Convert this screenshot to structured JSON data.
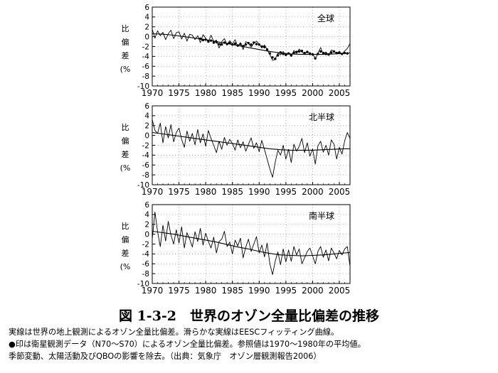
{
  "figure": {
    "title": "図 1-3-2　世界のオゾン全量比偏差の推移",
    "caption_lines": [
      "実線は世界の地上観測によるオゾン全量比偏差。滑らかな実線はEESCフィッティング曲線。",
      "●印は衛星観測データ（N70～S70）によるオゾン全量比偏差。参照値は1970～1980年の平均値。",
      "季節変動、太陽活動及びQBOの影響を除去。（出典：気象庁　オゾン層観測報告2006）"
    ]
  },
  "chart_data": [
    {
      "type": "line",
      "region_label": "全球",
      "ylabel": [
        "比",
        "偏",
        "差",
        "(%"
      ],
      "xlim": [
        1970,
        2007
      ],
      "ylim": [
        -10,
        6
      ],
      "xticks": [
        "1970",
        "1975",
        "1980",
        "1985",
        "1990",
        "1995",
        "2000",
        "2005"
      ],
      "yticks": [
        "6",
        "4",
        "2",
        "0",
        "-2",
        "-4",
        "-6",
        "-8",
        "-10"
      ],
      "grid": "dotted",
      "series": [
        {
          "name": "",
          "style": "line",
          "x": [
            1970.0,
            1970.5,
            1971.0,
            1971.5,
            1972.0,
            1972.5,
            1973.0,
            1973.5,
            1974.0,
            1974.5,
            1975.0,
            1975.5,
            1976.0,
            1976.5,
            1977.0,
            1977.5,
            1978.0,
            1978.5,
            1979.0,
            1979.5,
            1980.0,
            1980.5,
            1981.0,
            1981.5,
            1982.0,
            1982.5,
            1983.0,
            1983.5,
            1984.0,
            1984.5,
            1985.0,
            1985.5,
            1986.0,
            1986.5,
            1987.0,
            1987.5,
            1988.0,
            1988.5,
            1989.0,
            1989.5,
            1990.0,
            1990.5,
            1991.0,
            1991.5,
            1992.0,
            1992.5,
            1993.0,
            1993.5,
            1994.0,
            1994.5,
            1995.0,
            1995.5,
            1996.0,
            1996.5,
            1997.0,
            1997.5,
            1998.0,
            1998.5,
            1999.0,
            1999.5,
            2000.0,
            2000.5,
            2001.0,
            2001.5,
            2002.0,
            2002.5,
            2003.0,
            2003.5,
            2004.0,
            2004.5,
            2005.0,
            2005.5,
            2006.0,
            2006.5,
            2007.0
          ],
          "y": [
            1.5,
            -0.3,
            1.2,
            0.2,
            0.9,
            -0.6,
            0.6,
            1.3,
            -0.4,
            0.8,
            1.0,
            -0.5,
            0.7,
            -0.9,
            0.5,
            0.3,
            -0.6,
            0.2,
            -1.2,
            0.4,
            -0.3,
            -1.1,
            0.3,
            -1.0,
            -0.7,
            -2.3,
            -1.0,
            -0.4,
            -1.6,
            -0.8,
            -1.5,
            -0.6,
            -2.0,
            -1.2,
            -2.6,
            -1.0,
            -1.3,
            -2.1,
            -1.4,
            -0.9,
            -1.5,
            -2.3,
            -1.7,
            -2.6,
            -3.6,
            -4.8,
            -4.6,
            -3.3,
            -3.7,
            -3.0,
            -3.9,
            -3.3,
            -4.0,
            -2.8,
            -3.4,
            -2.5,
            -3.1,
            -3.6,
            -2.9,
            -3.7,
            -3.4,
            -4.5,
            -3.3,
            -2.2,
            -3.6,
            -3.1,
            -3.8,
            -2.7,
            -2.9,
            -3.5,
            -3.1,
            -3.6,
            -2.9,
            -2.4,
            -1.4
          ]
        },
        {
          "name": "",
          "style": "dots",
          "x": [
            1979.0,
            1979.5,
            1980.0,
            1980.5,
            1981.0,
            1981.5,
            1982.0,
            1982.5,
            1983.0,
            1983.5,
            1984.0,
            1984.5,
            1985.0,
            1985.5,
            1986.0,
            1986.5,
            1987.0,
            1987.5,
            1988.0,
            1988.5,
            1989.0,
            1989.5,
            1990.0,
            1990.5,
            1991.0,
            1991.5,
            1992.0,
            1992.5,
            1993.0,
            1993.5,
            1994.0,
            1994.5,
            1995.0,
            1995.5,
            1996.0,
            1996.5,
            1997.0,
            1997.5,
            1998.0,
            1998.5,
            1999.0,
            1999.5,
            2000.0,
            2000.5,
            2001.0,
            2001.5,
            2002.0,
            2002.5,
            2003.0,
            2003.5,
            2004.0,
            2004.5,
            2005.0,
            2005.5,
            2006.0,
            2006.5
          ],
          "y": [
            -0.4,
            -0.7,
            -0.6,
            -1.0,
            -0.8,
            -1.2,
            -1.1,
            -1.5,
            -1.6,
            -1.2,
            -1.5,
            -1.3,
            -1.6,
            -1.4,
            -1.8,
            -1.5,
            -1.9,
            -1.6,
            -1.3,
            -1.6,
            -1.2,
            -1.5,
            -1.6,
            -2.0,
            -2.1,
            -2.6,
            -3.4,
            -4.2,
            -4.5,
            -3.8,
            -3.2,
            -3.5,
            -3.7,
            -3.4,
            -3.8,
            -3.3,
            -3.1,
            -3.0,
            -2.9,
            -3.3,
            -3.1,
            -3.4,
            -3.6,
            -4.4,
            -3.5,
            -3.0,
            -3.3,
            -3.5,
            -3.6,
            -3.2,
            -3.0,
            -3.3,
            -3.2,
            -3.5,
            -3.3,
            -3.4
          ]
        },
        {
          "name": "",
          "style": "smooth",
          "x": [
            1970,
            1972,
            1974,
            1976,
            1978,
            1980,
            1982,
            1984,
            1986,
            1988,
            1990,
            1992,
            1994,
            1996,
            1998,
            2000,
            2002,
            2004,
            2006,
            2007
          ],
          "y": [
            0.6,
            0.5,
            0.3,
            0.0,
            -0.3,
            -0.6,
            -1.0,
            -1.4,
            -1.8,
            -2.2,
            -2.6,
            -3.0,
            -3.3,
            -3.5,
            -3.6,
            -3.6,
            -3.6,
            -3.5,
            -3.4,
            -3.3
          ]
        }
      ]
    },
    {
      "type": "line",
      "region_label": "北半球",
      "ylabel": [
        "比",
        "偏",
        "差",
        "(%"
      ],
      "xlim": [
        1970,
        2007
      ],
      "ylim": [
        -10,
        6
      ],
      "xticks": [
        "1970",
        "1975",
        "1980",
        "1985",
        "1990",
        "1995",
        "2000",
        "2005"
      ],
      "yticks": [
        "6",
        "4",
        "2",
        "0",
        "-2",
        "-4",
        "-6",
        "-8",
        "-10"
      ],
      "grid": "dotted",
      "series": [
        {
          "name": "",
          "style": "line",
          "x": [
            1970.0,
            1970.5,
            1971.0,
            1971.5,
            1972.0,
            1972.5,
            1973.0,
            1973.5,
            1974.0,
            1974.5,
            1975.0,
            1975.5,
            1976.0,
            1976.5,
            1977.0,
            1977.5,
            1978.0,
            1978.5,
            1979.0,
            1979.5,
            1980.0,
            1980.5,
            1981.0,
            1981.5,
            1982.0,
            1982.5,
            1983.0,
            1983.5,
            1984.0,
            1984.5,
            1985.0,
            1985.5,
            1986.0,
            1986.5,
            1987.0,
            1987.5,
            1988.0,
            1988.5,
            1989.0,
            1989.5,
            1990.0,
            1990.5,
            1991.0,
            1991.5,
            1992.0,
            1992.5,
            1993.0,
            1993.5,
            1994.0,
            1994.5,
            1995.0,
            1995.5,
            1996.0,
            1996.5,
            1997.0,
            1997.5,
            1998.0,
            1998.5,
            1999.0,
            1999.5,
            2000.0,
            2000.5,
            2001.0,
            2001.5,
            2002.0,
            2002.5,
            2003.0,
            2003.5,
            2004.0,
            2004.5,
            2005.0,
            2005.5,
            2006.0,
            2006.5,
            2007.0
          ],
          "y": [
            3.2,
            1.0,
            0.4,
            2.5,
            -1.5,
            1.8,
            -0.5,
            2.2,
            -1.3,
            0.6,
            1.5,
            -0.8,
            -2.4,
            0.9,
            -1.2,
            0.4,
            -1.9,
            1.2,
            -1.5,
            0.3,
            -2.2,
            1.0,
            -0.6,
            -2.0,
            -3.5,
            -1.2,
            -2.8,
            -0.4,
            -2.0,
            -0.8,
            -1.6,
            -3.0,
            -0.9,
            -2.5,
            -1.3,
            -3.2,
            -1.8,
            -0.5,
            -2.6,
            -1.5,
            -3.3,
            -1.0,
            -2.9,
            -4.8,
            -6.8,
            -8.5,
            -5.5,
            -3.0,
            -4.0,
            -2.0,
            -4.8,
            -2.8,
            -5.5,
            -1.8,
            -3.2,
            -2.2,
            -0.6,
            -3.5,
            -1.5,
            -4.2,
            -2.7,
            -5.8,
            -2.1,
            -1.2,
            -3.4,
            -2.0,
            -4.0,
            -0.9,
            -1.8,
            -4.8,
            -2.4,
            -3.8,
            -1.1,
            0.6,
            -0.6
          ]
        },
        {
          "name": "",
          "style": "smooth",
          "x": [
            1970,
            1972,
            1974,
            1976,
            1978,
            1980,
            1982,
            1984,
            1986,
            1988,
            1990,
            1992,
            1994,
            1996,
            1998,
            2000,
            2002,
            2004,
            2006,
            2007
          ],
          "y": [
            0.6,
            0.3,
            0.0,
            -0.3,
            -0.6,
            -0.9,
            -1.2,
            -1.5,
            -1.8,
            -2.1,
            -2.4,
            -2.7,
            -2.9,
            -3.0,
            -3.0,
            -3.0,
            -2.9,
            -2.8,
            -2.7,
            -2.7
          ]
        }
      ]
    },
    {
      "type": "line",
      "region_label": "南半球",
      "ylabel": [
        "比",
        "偏",
        "差",
        "(%"
      ],
      "xlim": [
        1970,
        2007
      ],
      "ylim": [
        -10,
        6
      ],
      "xticks": [
        "1970",
        "1975",
        "1980",
        "1985",
        "1990",
        "1995",
        "2000",
        "2005"
      ],
      "yticks": [
        "6",
        "4",
        "2",
        "0",
        "-2",
        "-4",
        "-6",
        "-8",
        "-10"
      ],
      "grid": "dotted",
      "series": [
        {
          "name": "",
          "style": "line",
          "x": [
            1970.0,
            1970.5,
            1971.0,
            1971.5,
            1972.0,
            1972.5,
            1973.0,
            1973.5,
            1974.0,
            1974.5,
            1975.0,
            1975.5,
            1976.0,
            1976.5,
            1977.0,
            1977.5,
            1978.0,
            1978.5,
            1979.0,
            1979.5,
            1980.0,
            1980.5,
            1981.0,
            1981.5,
            1982.0,
            1982.5,
            1983.0,
            1983.5,
            1984.0,
            1984.5,
            1985.0,
            1985.5,
            1986.0,
            1986.5,
            1987.0,
            1987.5,
            1988.0,
            1988.5,
            1989.0,
            1989.5,
            1990.0,
            1990.5,
            1991.0,
            1991.5,
            1992.0,
            1992.5,
            1993.0,
            1993.5,
            1994.0,
            1994.5,
            1995.0,
            1995.5,
            1996.0,
            1996.5,
            1997.0,
            1997.5,
            1998.0,
            1998.5,
            1999.0,
            1999.5,
            2000.0,
            2000.5,
            2001.0,
            2001.5,
            2002.0,
            2002.5,
            2003.0,
            2003.5,
            2004.0,
            2004.5,
            2005.0,
            2005.5,
            2006.0,
            2006.5,
            2007.0
          ],
          "y": [
            -1.0,
            4.5,
            0.5,
            -2.5,
            1.8,
            -1.4,
            2.6,
            -0.2,
            -2.0,
            0.9,
            -1.8,
            1.5,
            -2.8,
            0.3,
            -1.0,
            -2.6,
            0.5,
            -1.5,
            1.2,
            -2.2,
            0.2,
            -1.5,
            -2.8,
            -0.6,
            -3.8,
            -1.5,
            -1.0,
            0.6,
            -2.5,
            -1.6,
            -4.0,
            -1.2,
            -2.4,
            -0.8,
            -4.8,
            -2.6,
            -1.0,
            -3.5,
            -2.0,
            -0.5,
            -3.8,
            -2.2,
            -4.6,
            -1.8,
            -6.0,
            -8.2,
            -5.5,
            -3.6,
            -6.2,
            -3.0,
            -5.6,
            -3.2,
            -5.5,
            -2.5,
            -4.2,
            -3.0,
            -6.0,
            -4.8,
            -3.5,
            -2.8,
            -4.4,
            -6.0,
            -3.5,
            -2.5,
            -4.7,
            -3.2,
            -5.4,
            -2.8,
            -3.8,
            -5.0,
            -3.3,
            -4.2,
            -3.0,
            -2.5,
            -6.5
          ]
        },
        {
          "name": "",
          "style": "smooth",
          "x": [
            1970,
            1972,
            1974,
            1976,
            1978,
            1980,
            1982,
            1984,
            1986,
            1988,
            1990,
            1992,
            1994,
            1996,
            1998,
            2000,
            2002,
            2004,
            2006,
            2007
          ],
          "y": [
            0.6,
            0.3,
            0.0,
            -0.4,
            -0.8,
            -1.2,
            -1.6,
            -2.1,
            -2.6,
            -3.0,
            -3.5,
            -3.9,
            -4.2,
            -4.3,
            -4.4,
            -4.3,
            -4.2,
            -4.0,
            -3.8,
            -3.7
          ]
        }
      ]
    }
  ]
}
